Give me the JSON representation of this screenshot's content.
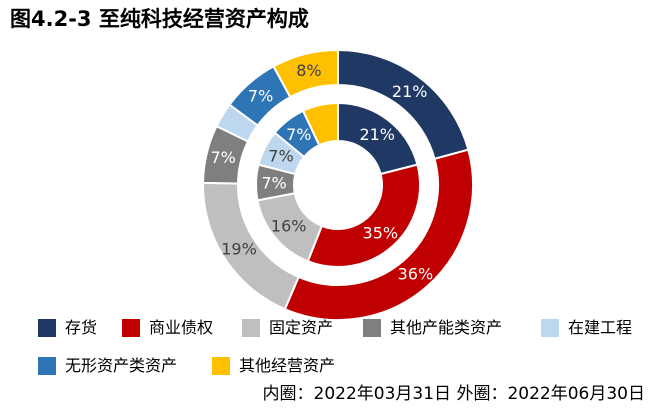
{
  "title": "图4.2-3 至纯科技经营资产构成",
  "footnote": "内圈：2022年03月31日 外圈：2022年06月30日",
  "chart_data": {
    "type": "pie",
    "subtype": "donut",
    "title": "图4.2-3 至纯科技经营资产构成",
    "categories": [
      "存货",
      "商业债权",
      "固定资产",
      "其他产能类资产",
      "在建工程",
      "无形资产类资产",
      "其他经营资产"
    ],
    "colors": [
      "#1f3864",
      "#c00000",
      "#bfbfbf",
      "#7f7f7f",
      "#bdd7ee",
      "#2e75b6",
      "#ffc000"
    ],
    "label_colors": [
      "#ffffff",
      "#ffffff",
      "#404040",
      "#ffffff",
      "#404040",
      "#ffffff",
      "#404040"
    ],
    "series": [
      {
        "ring": "inner",
        "values": [
          21,
          35,
          16,
          7,
          7,
          7,
          7
        ],
        "labels": [
          "21%",
          "35%",
          "16%",
          "7%",
          "7%",
          "7%",
          ""
        ]
      },
      {
        "ring": "outer",
        "values": [
          21,
          36,
          19,
          7,
          3,
          7,
          8
        ],
        "labels": [
          "21%",
          "36%",
          "19%",
          "7%",
          "",
          "7%",
          "8%"
        ]
      }
    ],
    "legend": {
      "position": "bottom",
      "rows": [
        [
          {
            "label": "存货",
            "color": "#1f3864"
          },
          {
            "label": "商业债权",
            "color": "#c00000"
          },
          {
            "label": "固定资产",
            "color": "#bfbfbf"
          },
          {
            "label": "其他产能类资产",
            "color": "#7f7f7f"
          },
          {
            "label": "在建工程",
            "color": "#bdd7ee"
          }
        ],
        [
          {
            "label": "无形资产类资产",
            "color": "#2e75b6"
          },
          {
            "label": "其他经营资产",
            "color": "#ffc000"
          }
        ]
      ]
    }
  }
}
